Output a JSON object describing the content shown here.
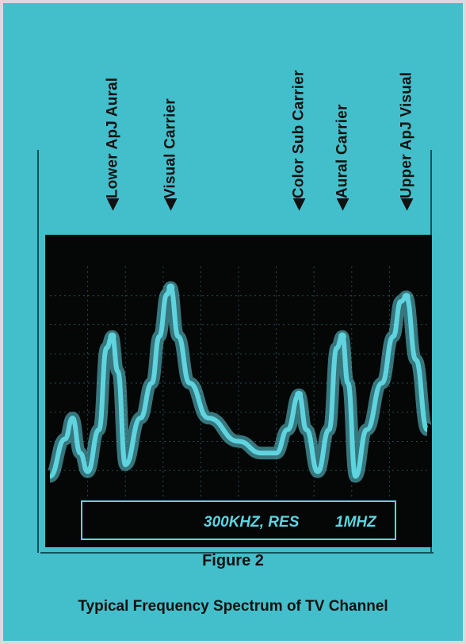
{
  "figure": {
    "number": "Figure 2",
    "caption": "Typical Frequency Spectrum of TV Channel",
    "colors": {
      "background": "#43bfcb",
      "screen": "#050606",
      "trace": "#5fd4df",
      "text": "#111111"
    }
  },
  "markers": [
    {
      "label": "Lower ApJ Aural",
      "id": "lower-adj-aural"
    },
    {
      "label": "Visual Carrier",
      "id": "visual-carrier"
    },
    {
      "label": "Color Sub Carrier",
      "id": "color-sub-carrier"
    },
    {
      "label": "Aural Carrier",
      "id": "aural-carrier"
    },
    {
      "label": "Upper ApJ Visual",
      "id": "upper-adj-visual"
    }
  ],
  "screen_readout": {
    "left": "300KHZ, RES",
    "right": "1MHZ"
  },
  "chart_data": {
    "type": "line",
    "title": "",
    "xlabel": "",
    "ylabel": "",
    "ylim": [
      0,
      10
    ],
    "grid": true,
    "series": [
      {
        "points": [
          [
            0.0,
            1.0
          ],
          [
            0.04,
            2.6
          ],
          [
            0.06,
            3.5
          ],
          [
            0.08,
            2.0
          ],
          [
            0.1,
            1.2
          ],
          [
            0.13,
            3.0
          ],
          [
            0.15,
            6.5
          ],
          [
            0.165,
            7.0
          ],
          [
            0.18,
            5.5
          ],
          [
            0.2,
            1.5
          ],
          [
            0.24,
            3.5
          ],
          [
            0.27,
            5.0
          ],
          [
            0.29,
            7.0
          ],
          [
            0.31,
            8.8
          ],
          [
            0.32,
            9.1
          ],
          [
            0.34,
            7.0
          ],
          [
            0.37,
            5.0
          ],
          [
            0.42,
            3.5
          ],
          [
            0.5,
            2.5
          ],
          [
            0.56,
            2.0
          ],
          [
            0.6,
            2.0
          ],
          [
            0.63,
            3.0
          ],
          [
            0.66,
            4.5
          ],
          [
            0.68,
            3.0
          ],
          [
            0.71,
            1.2
          ],
          [
            0.74,
            3.0
          ],
          [
            0.76,
            6.5
          ],
          [
            0.775,
            7.0
          ],
          [
            0.79,
            5.0
          ],
          [
            0.81,
            1.0
          ],
          [
            0.84,
            3.0
          ],
          [
            0.88,
            5.0
          ],
          [
            0.91,
            7.0
          ],
          [
            0.93,
            8.5
          ],
          [
            0.945,
            8.7
          ],
          [
            0.97,
            6.0
          ],
          [
            1.0,
            3.0
          ]
        ]
      }
    ],
    "peaks": [
      {
        "label": "Lower ApJ Aural",
        "x": 0.165,
        "y": 7.0
      },
      {
        "label": "Visual Carrier",
        "x": 0.32,
        "y": 9.1
      },
      {
        "label": "Color Sub Carrier",
        "x": 0.66,
        "y": 4.5
      },
      {
        "label": "Aural Carrier",
        "x": 0.775,
        "y": 7.0
      },
      {
        "label": "Upper ApJ Visual",
        "x": 0.945,
        "y": 8.7
      }
    ]
  }
}
